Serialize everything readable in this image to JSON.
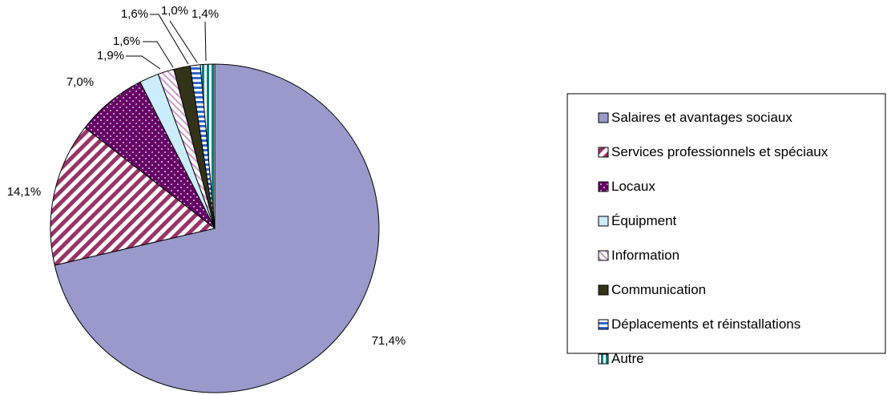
{
  "chart_data": {
    "type": "pie",
    "title": "",
    "legend_position": "right",
    "slices": [
      {
        "label": "Salaires et avantages sociaux",
        "value": 71.4,
        "value_label": "71,4%",
        "color": "#9999cc",
        "pattern": "solid"
      },
      {
        "label": "Services professionnels et spéciaux",
        "value": 14.1,
        "value_label": "14,1%",
        "color": "#993366",
        "pattern": "diagonal-stripes"
      },
      {
        "label": "Locaux",
        "value": 7.0,
        "value_label": "7,0%",
        "color": "#660066",
        "pattern": "dots"
      },
      {
        "label": "Équipment",
        "value": 1.9,
        "value_label": "1,9%",
        "color": "#ccecff",
        "pattern": "solid"
      },
      {
        "label": "Information",
        "value": 1.6,
        "value_label": "1,6%",
        "color": "#cc99cc",
        "pattern": "fine-diagonal"
      },
      {
        "label": "Communication",
        "value": 1.6,
        "value_label": "1,6%",
        "color": "#333319",
        "pattern": "solid"
      },
      {
        "label": "Déplacements et réinstallations",
        "value": 1.0,
        "value_label": "1,0%",
        "color": "#3366cc",
        "pattern": "horizontal-stripes"
      },
      {
        "label": "Autre",
        "value": 1.4,
        "value_label": "1,4%",
        "color": "#008080",
        "pattern": "vertical-stripes"
      }
    ]
  }
}
